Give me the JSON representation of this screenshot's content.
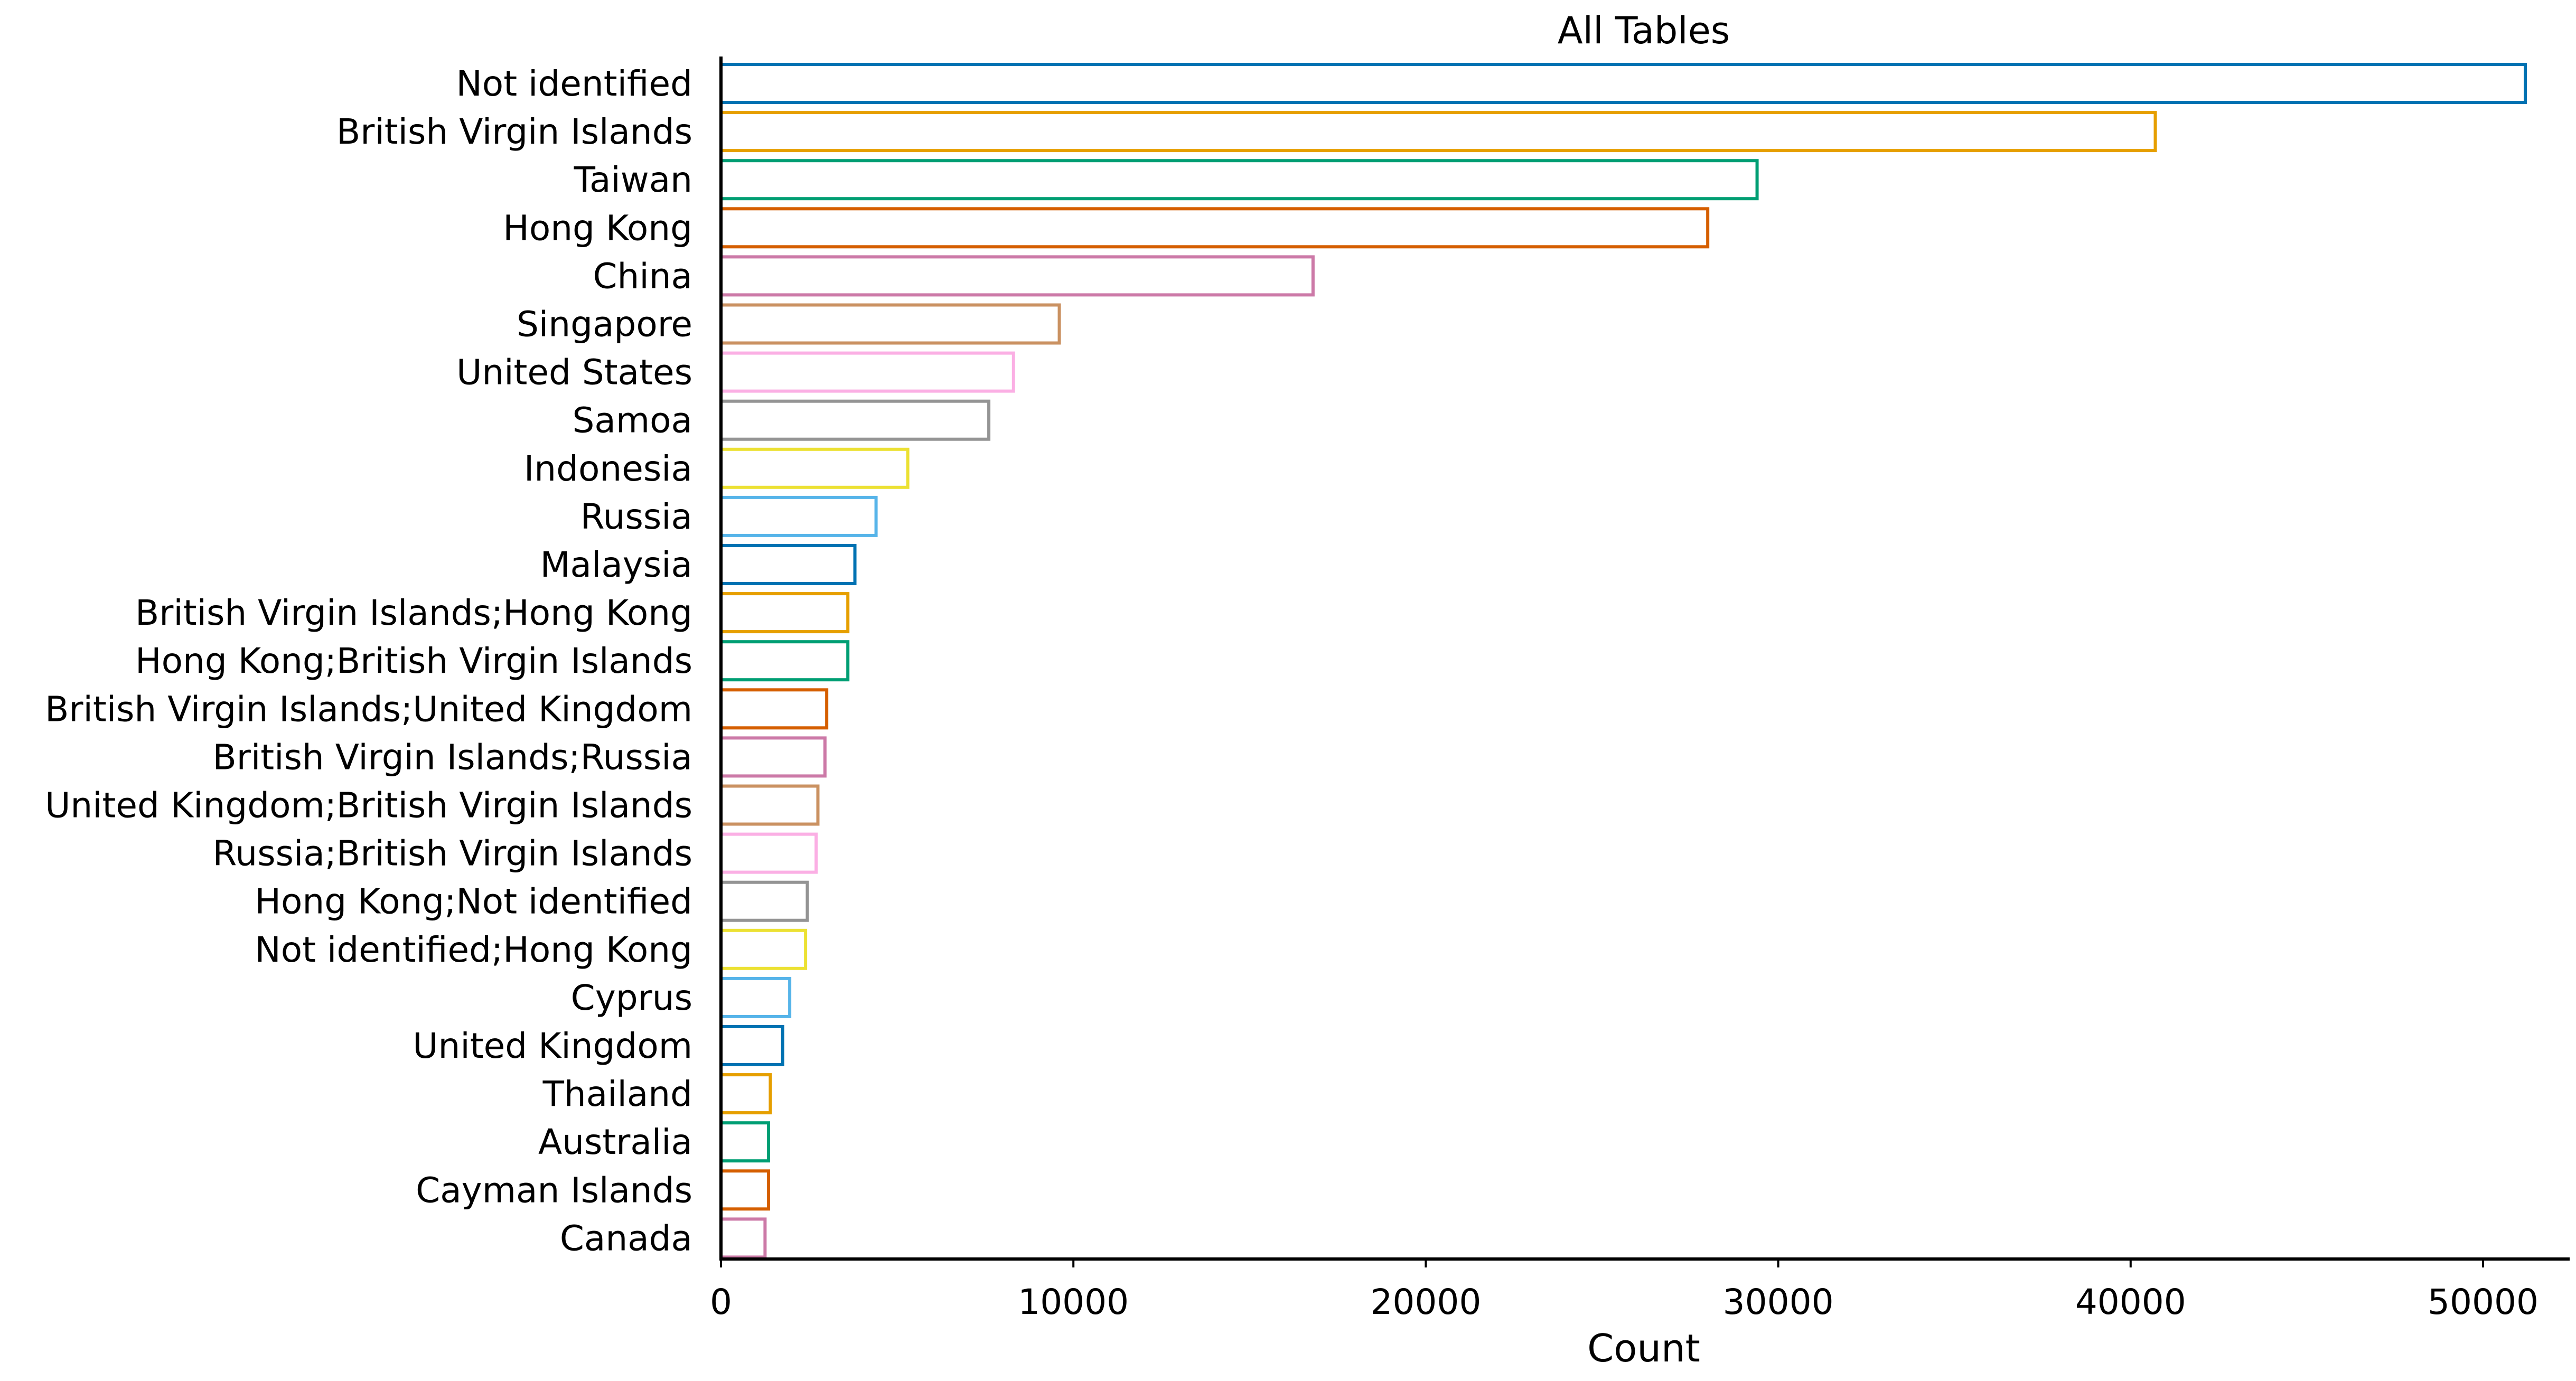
{
  "chart_data": {
    "type": "bar",
    "orientation": "horizontal",
    "title": "All Tables",
    "xlabel": "Count",
    "ylabel": "",
    "xlim": [
      0,
      53700
    ],
    "xticks": [
      0,
      10000,
      20000,
      30000,
      40000,
      50000
    ],
    "grid": false,
    "legend": "none",
    "categories": [
      "Not identified",
      "British Virgin Islands",
      "Taiwan",
      "Hong Kong",
      "China",
      "Singapore",
      "United States",
      "Samoa",
      "Indonesia",
      "Russia",
      "Malaysia",
      "British Virgin Islands;Hong Kong",
      "Hong Kong;British Virgin Islands",
      "British Virgin Islands;United Kingdom",
      "British Virgin Islands;Russia",
      "United Kingdom;British Virgin Islands",
      "Russia;British Virgin Islands",
      "Hong Kong;Not identified",
      "Not identified;Hong Kong",
      "Cyprus",
      "United Kingdom",
      "Thailand",
      "Australia",
      "Cayman Islands",
      "Canada"
    ],
    "values": [
      51200,
      40700,
      29400,
      28000,
      16800,
      9600,
      8300,
      7600,
      5300,
      4400,
      3800,
      3600,
      3600,
      3000,
      2950,
      2750,
      2700,
      2450,
      2400,
      1950,
      1750,
      1400,
      1350,
      1350,
      1250
    ],
    "colors": [
      "#0072b2",
      "#e69f00",
      "#009e73",
      "#d55e00",
      "#cc79a7",
      "#ca9161",
      "#fbafe4",
      "#949494",
      "#ece133",
      "#56b4e9"
    ]
  }
}
